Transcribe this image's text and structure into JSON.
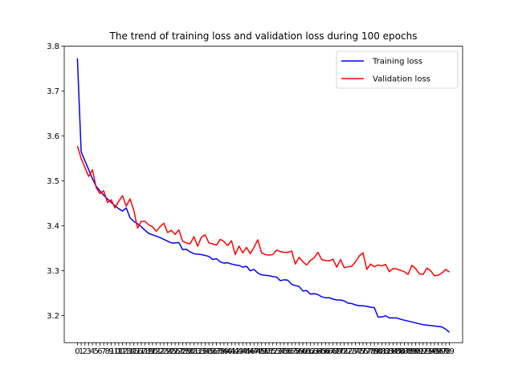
{
  "chart_data": {
    "type": "line",
    "title": "The trend of training loss and validation loss during 100 epochs",
    "xlabel": "",
    "ylabel": "",
    "x": [
      0,
      1,
      2,
      3,
      4,
      5,
      6,
      7,
      8,
      9,
      10,
      11,
      12,
      13,
      14,
      15,
      16,
      17,
      18,
      19,
      20,
      21,
      22,
      23,
      24,
      25,
      26,
      27,
      28,
      29,
      30,
      31,
      32,
      33,
      34,
      35,
      36,
      37,
      38,
      39,
      40,
      41,
      42,
      43,
      44,
      45,
      46,
      47,
      48,
      49,
      50,
      51,
      52,
      53,
      54,
      55,
      56,
      57,
      58,
      59,
      60,
      61,
      62,
      63,
      64,
      65,
      66,
      67,
      68,
      69,
      70,
      71,
      72,
      73,
      74,
      75,
      76,
      77,
      78,
      79,
      80,
      81,
      82,
      83,
      84,
      85,
      86,
      87,
      88,
      89,
      90,
      91,
      92,
      93,
      94,
      95,
      96,
      97,
      98,
      99
    ],
    "xlim": [
      -3.5,
      102.5
    ],
    "ylim": [
      3.14,
      3.8
    ],
    "yticks": [
      3.2,
      3.3,
      3.4,
      3.5,
      3.6,
      3.7,
      3.8
    ],
    "yticklabels": [
      "3.2",
      "3.3",
      "3.4",
      "3.5",
      "3.6",
      "3.7",
      "3.8"
    ],
    "grid": false,
    "legend_position": "upper right",
    "series": [
      {
        "name": "Training loss",
        "color": "#0000ff",
        "values": [
          3.773,
          3.565,
          3.545,
          3.525,
          3.505,
          3.488,
          3.478,
          3.468,
          3.46,
          3.452,
          3.445,
          3.438,
          3.433,
          3.44,
          3.418,
          3.41,
          3.405,
          3.398,
          3.39,
          3.383,
          3.38,
          3.377,
          3.374,
          3.37,
          3.366,
          3.362,
          3.362,
          3.363,
          3.347,
          3.348,
          3.342,
          3.338,
          3.337,
          3.336,
          3.334,
          3.332,
          3.325,
          3.327,
          3.32,
          3.317,
          3.318,
          3.315,
          3.313,
          3.312,
          3.308,
          3.31,
          3.3,
          3.303,
          3.295,
          3.291,
          3.29,
          3.289,
          3.287,
          3.286,
          3.278,
          3.28,
          3.279,
          3.27,
          3.267,
          3.265,
          3.255,
          3.256,
          3.248,
          3.249,
          3.247,
          3.242,
          3.24,
          3.24,
          3.237,
          3.235,
          3.235,
          3.233,
          3.228,
          3.227,
          3.224,
          3.222,
          3.222,
          3.221,
          3.219,
          3.218,
          3.197,
          3.197,
          3.2,
          3.195,
          3.195,
          3.195,
          3.192,
          3.19,
          3.188,
          3.186,
          3.184,
          3.182,
          3.18,
          3.179,
          3.178,
          3.177,
          3.176,
          3.175,
          3.17,
          3.163
        ]
      },
      {
        "name": "Validation loss",
        "color": "#ff0000",
        "values": [
          3.578,
          3.55,
          3.53,
          3.51,
          3.525,
          3.485,
          3.472,
          3.478,
          3.452,
          3.458,
          3.44,
          3.455,
          3.467,
          3.444,
          3.46,
          3.435,
          3.395,
          3.41,
          3.41,
          3.402,
          3.398,
          3.388,
          3.398,
          3.406,
          3.385,
          3.39,
          3.381,
          3.391,
          3.366,
          3.362,
          3.36,
          3.376,
          3.355,
          3.375,
          3.38,
          3.362,
          3.36,
          3.357,
          3.37,
          3.365,
          3.356,
          3.367,
          3.336,
          3.355,
          3.34,
          3.352,
          3.338,
          3.352,
          3.369,
          3.34,
          3.336,
          3.335,
          3.336,
          3.346,
          3.343,
          3.341,
          3.341,
          3.344,
          3.315,
          3.33,
          3.32,
          3.313,
          3.323,
          3.329,
          3.341,
          3.325,
          3.323,
          3.322,
          3.326,
          3.308,
          3.325,
          3.307,
          3.309,
          3.31,
          3.32,
          3.333,
          3.34,
          3.303,
          3.315,
          3.309,
          3.313,
          3.311,
          3.314,
          3.298,
          3.305,
          3.304,
          3.301,
          3.298,
          3.292,
          3.312,
          3.305,
          3.293,
          3.292,
          3.306,
          3.3,
          3.289,
          3.29,
          3.295,
          3.303,
          3.297
        ]
      }
    ]
  }
}
